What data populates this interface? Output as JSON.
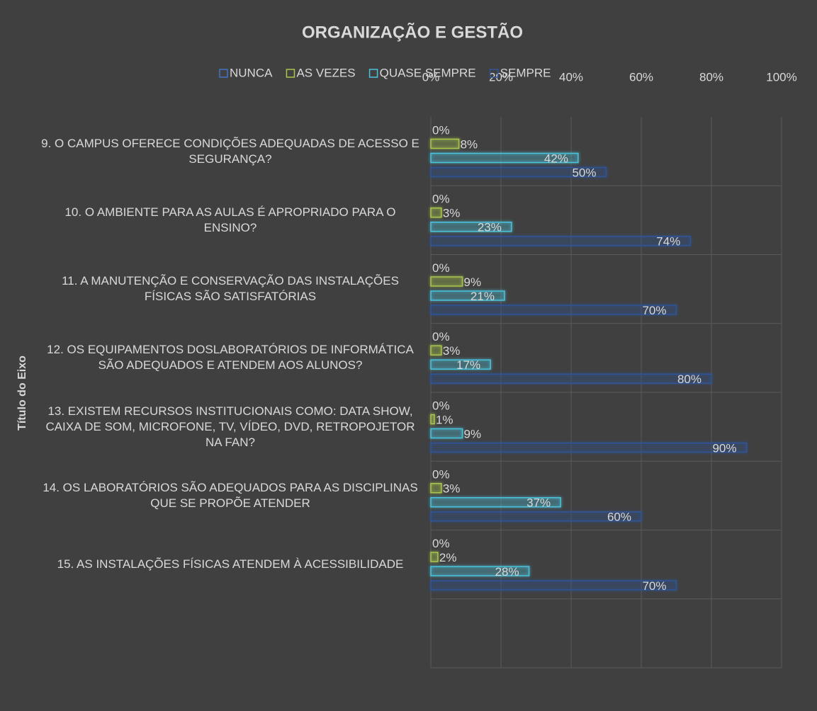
{
  "chart_data": {
    "type": "bar",
    "orientation": "horizontal",
    "title": "ORGANIZAÇÃO E GESTÃO",
    "y_axis_label": "Título do Eixo",
    "categories": [
      "9. O CAMPUS OFERECE CONDIÇÕES ADEQUADAS DE ACESSO E SEGURANÇA?",
      "10. O AMBIENTE PARA AS AULAS É APROPRIADO PARA O ENSINO?",
      "11. A MANUTENÇÃO E CONSERVAÇÃO DAS INSTALAÇÕES FÍSICAS SÃO SATISFATÓRIAS",
      "12. OS EQUIPAMENTOS DOSLABORATÓRIOS DE INFORMÁTICA SÃO ADEQUADOS E ATENDEM AOS ALUNOS?",
      "13. EXISTEM RECURSOS INSTITUCIONAIS COMO: DATA SHOW, CAIXA DE SOM, MICROFONE, TV, VÍDEO, DVD, RETROPOJETOR NA FAN?",
      "14. OS LABORATÓRIOS SÃO ADEQUADOS PARA AS DISCIPLINAS QUE SE PROPÕE ATENDER",
      "15. AS INSTALAÇÕES FÍSICAS ATENDEM À ACESSIBILIDADE",
      null
    ],
    "series": [
      {
        "name": "NUNCA",
        "color": "#4472c4",
        "values": [
          0,
          0,
          0,
          0,
          0,
          0,
          0,
          null
        ],
        "value_labels": [
          "0%",
          "0%",
          "0%",
          "0%",
          "0%",
          "0%",
          "0%",
          null
        ]
      },
      {
        "name": "AS VEZES",
        "color": "#a9c64e",
        "values": [
          8,
          3,
          9,
          3,
          1,
          3,
          2,
          null
        ],
        "value_labels": [
          "8%",
          "3%",
          "9%",
          "3%",
          "1%",
          "3%",
          "2%",
          null
        ]
      },
      {
        "name": "QUASE SEMPRE",
        "color": "#4bc3dc",
        "values": [
          42,
          23,
          21,
          17,
          9,
          37,
          28,
          null
        ],
        "value_labels": [
          "42%",
          "23%",
          "21%",
          "17%",
          "9%",
          "37%",
          "28%",
          null
        ]
      },
      {
        "name": "SEMPRE",
        "color": "#2f5597",
        "values": [
          50,
          74,
          70,
          80,
          90,
          60,
          70,
          null
        ],
        "value_labels": [
          "50%",
          "74%",
          "70%",
          "80%",
          "90%",
          "60%",
          "70%",
          null
        ]
      }
    ],
    "xlim": [
      0,
      100
    ],
    "xticks": [
      {
        "value": 0,
        "label": "0%"
      },
      {
        "value": 20,
        "label": "20%"
      },
      {
        "value": 40,
        "label": "40%"
      },
      {
        "value": 60,
        "label": "60%"
      },
      {
        "value": 80,
        "label": "80%"
      },
      {
        "value": 100,
        "label": "100%"
      }
    ],
    "grid": true,
    "legend": "top"
  }
}
